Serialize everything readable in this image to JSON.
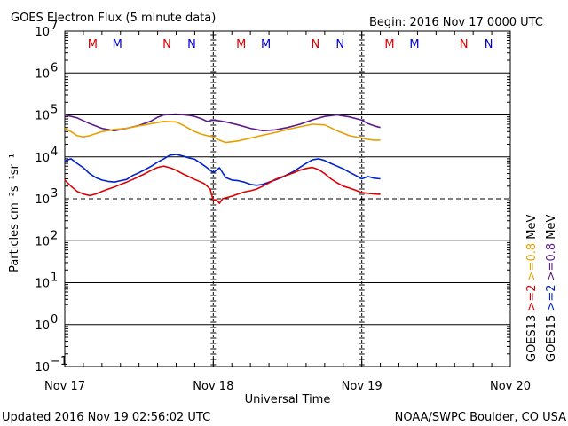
{
  "chart_data": {
    "type": "line",
    "title": "GOES Electron Flux (5 minute data)",
    "begin_label": "Begin: 2016 Nov 17 0000 UTC",
    "xlabel": "Universal Time",
    "ylabel": "Particles cm⁻²s⁻¹sr⁻¹",
    "y_scale": "log",
    "ylim": [
      0.1,
      10000000
    ],
    "xlim_hours": [
      0,
      72
    ],
    "x_ticks": [
      {
        "hour": 0,
        "label": "Nov 17"
      },
      {
        "hour": 24,
        "label": "Nov 18"
      },
      {
        "hour": 48,
        "label": "Nov 19"
      },
      {
        "hour": 72,
        "label": "Nov 20"
      }
    ],
    "y_ticks": [
      {
        "value": 0.1,
        "base": "10",
        "exp": "−1"
      },
      {
        "value": 1,
        "base": "10",
        "exp": "0"
      },
      {
        "value": 10,
        "base": "10",
        "exp": "1"
      },
      {
        "value": 100,
        "base": "10",
        "exp": "2"
      },
      {
        "value": 1000,
        "base": "10",
        "exp": "3"
      },
      {
        "value": 10000,
        "base": "10",
        "exp": "4"
      },
      {
        "value": 100000,
        "base": "10",
        "exp": "5"
      },
      {
        "value": 1000000,
        "base": "10",
        "exp": "6"
      },
      {
        "value": 10000000,
        "base": "10",
        "exp": "7"
      }
    ],
    "threshold": 1000,
    "grid": true,
    "markers": [
      {
        "hour": 4.5,
        "label": "M",
        "color": "#dd0000"
      },
      {
        "hour": 8.5,
        "label": "M",
        "color": "#0000cc"
      },
      {
        "hour": 16.5,
        "label": "N",
        "color": "#dd0000"
      },
      {
        "hour": 20.5,
        "label": "N",
        "color": "#0000cc"
      },
      {
        "hour": 28.5,
        "label": "M",
        "color": "#dd0000"
      },
      {
        "hour": 32.5,
        "label": "M",
        "color": "#0000cc"
      },
      {
        "hour": 40.5,
        "label": "N",
        "color": "#dd0000"
      },
      {
        "hour": 44.5,
        "label": "N",
        "color": "#0000cc"
      },
      {
        "hour": 52.5,
        "label": "M",
        "color": "#dd0000"
      },
      {
        "hour": 56.5,
        "label": "M",
        "color": "#0000cc"
      },
      {
        "hour": 64.5,
        "label": "N",
        "color": "#dd0000"
      },
      {
        "hour": 68.5,
        "label": "N",
        "color": "#0000cc"
      }
    ],
    "series": [
      {
        "color": "#5a1a8a",
        "hours": [
          0,
          2,
          4,
          6,
          8,
          10,
          12,
          14,
          15,
          16,
          18,
          20,
          21,
          22,
          23,
          24,
          25,
          26,
          28,
          30,
          32,
          34,
          36,
          38,
          40,
          42,
          44,
          46,
          48,
          49,
          50,
          51
        ],
        "values": [
          100000,
          85000,
          62000,
          48000,
          42000,
          48000,
          56000,
          72000,
          88000,
          100000,
          105000,
          98000,
          92000,
          82000,
          70000,
          75000,
          72000,
          68000,
          58000,
          48000,
          42000,
          44000,
          50000,
          60000,
          76000,
          92000,
          100000,
          90000,
          75000,
          62000,
          55000,
          50000
        ]
      },
      {
        "color": "#e8a000",
        "hours": [
          0,
          1,
          2,
          3,
          4,
          6,
          8,
          10,
          12,
          14,
          16,
          18,
          19,
          20,
          21,
          22,
          23,
          24,
          25,
          26,
          28,
          30,
          32,
          34,
          36,
          38,
          40,
          42,
          44,
          46,
          48,
          49,
          50,
          51
        ],
        "values": [
          48000,
          40000,
          32000,
          30000,
          32000,
          40000,
          45000,
          48000,
          55000,
          62000,
          70000,
          68000,
          58000,
          48000,
          40000,
          35000,
          32000,
          30000,
          25000,
          22000,
          24000,
          28000,
          33000,
          38000,
          45000,
          52000,
          60000,
          58000,
          42000,
          32000,
          28000,
          26000,
          25000,
          25000
        ]
      },
      {
        "color": "#0022cc",
        "hours": [
          0,
          1,
          2,
          3,
          4,
          5,
          6,
          7,
          8,
          9,
          10,
          11,
          12,
          13,
          14,
          15,
          16,
          17,
          18,
          19,
          20,
          21,
          22,
          23,
          24,
          25,
          26,
          27,
          28,
          29,
          30,
          31,
          32,
          33,
          34,
          35,
          36,
          37,
          38,
          39,
          40,
          41,
          42,
          43,
          44,
          45,
          46,
          47,
          48,
          49,
          50,
          51
        ],
        "values": [
          8000,
          9000,
          7000,
          5500,
          4000,
          3200,
          2800,
          2600,
          2500,
          2700,
          2900,
          3600,
          4200,
          5000,
          6000,
          7500,
          9000,
          11000,
          11500,
          10500,
          9500,
          8800,
          7000,
          5500,
          4200,
          5500,
          3200,
          2800,
          2700,
          2500,
          2200,
          2100,
          2200,
          2500,
          2800,
          3200,
          3800,
          4500,
          5600,
          7000,
          8500,
          9000,
          8200,
          7000,
          6000,
          5200,
          4300,
          3600,
          3000,
          3400,
          3100,
          3000
        ]
      },
      {
        "color": "#dd0000",
        "hours": [
          0,
          1,
          2,
          3,
          4,
          5,
          6,
          7,
          8,
          9,
          10,
          11,
          12,
          13,
          14,
          15,
          16,
          17,
          18,
          19,
          20,
          21,
          22,
          22.5,
          23,
          23.5,
          24,
          24.5,
          25,
          25.5,
          26,
          27,
          28,
          29,
          30,
          31,
          32,
          33,
          34,
          35,
          36,
          37,
          38,
          39,
          40,
          41,
          42,
          43,
          44,
          45,
          46,
          47,
          48,
          49,
          50,
          51
        ],
        "values": [
          2800,
          2000,
          1500,
          1300,
          1200,
          1300,
          1500,
          1700,
          1900,
          2200,
          2500,
          2900,
          3400,
          4000,
          4800,
          5600,
          6000,
          5500,
          4800,
          4000,
          3400,
          2900,
          2500,
          2300,
          2000,
          1700,
          900,
          950,
          780,
          1000,
          1050,
          1150,
          1300,
          1450,
          1550,
          1700,
          2000,
          2400,
          2900,
          3300,
          3700,
          4200,
          4800,
          5300,
          5600,
          5000,
          4000,
          3000,
          2400,
          2000,
          1800,
          1600,
          1400,
          1350,
          1300,
          1280
        ]
      }
    ],
    "legend": [
      {
        "label": "GOES13 >=2 >=0.8 MeV",
        "sat": "GOES13",
        "e2": ">=2",
        "e08": ">=0.8",
        "unit": "MeV",
        "color_e2": "#dd0000",
        "color_e08": "#e8a000"
      },
      {
        "label": "GOES15 >=2 >=0.8 MeV",
        "sat": "GOES15",
        "e2": ">=2",
        "e08": ">=0.8",
        "unit": "MeV",
        "color_e2": "#0022cc",
        "color_e08": "#5a1a8a"
      }
    ]
  },
  "footer": {
    "updated": "Updated 2016 Nov 19 02:56:02 UTC",
    "credit": "NOAA/SWPC Boulder, CO USA"
  }
}
